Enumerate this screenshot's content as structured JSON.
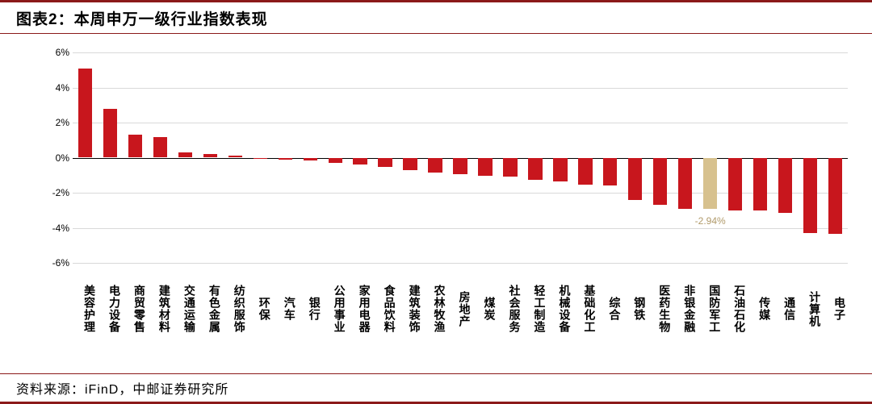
{
  "title": "图表2：本周申万一级行业指数表现",
  "source": "资料来源：iFinD，中邮证券研究所",
  "chart": {
    "type": "bar",
    "ylim": [
      -6,
      6
    ],
    "yticks": [
      -6,
      -4,
      -2,
      0,
      2,
      4,
      6
    ],
    "ytick_suffix": "%",
    "axis_color": "#000000",
    "grid_color": "#d9d9d9",
    "background_color": "#ffffff",
    "label_fontsize": 12,
    "title_fontsize": 19,
    "bar_width": 0.56,
    "default_bar_color": "#c8161d",
    "highlight_bar_color": "#d7c18e",
    "callout_color": "#b09a6a",
    "callout": {
      "index": 25,
      "text": "-2.94%"
    },
    "categories": [
      "美容护理",
      "电力设备",
      "商贸零售",
      "建筑材料",
      "交通运输",
      "有色金属",
      "纺织服饰",
      "环保",
      "汽车",
      "银行",
      "公用事业",
      "家用电器",
      "食品饮料",
      "建筑装饰",
      "农林牧渔",
      "房地产",
      "煤炭",
      "社会服务",
      "轻工制造",
      "机械设备",
      "基础化工",
      "综合",
      "钢铁",
      "医药生物",
      "非银金融",
      "国防军工",
      "石油石化",
      "传媒",
      "通信",
      "计算机",
      "电子"
    ],
    "values": [
      5.1,
      2.8,
      1.3,
      1.15,
      0.3,
      0.2,
      0.1,
      -0.05,
      -0.1,
      -0.15,
      -0.3,
      -0.4,
      -0.55,
      -0.7,
      -0.85,
      -0.95,
      -1.05,
      -1.1,
      -1.25,
      -1.35,
      -1.55,
      -1.6,
      -2.4,
      -2.7,
      -2.9,
      -2.94,
      -3.0,
      -3.0,
      -3.15,
      -4.3,
      -4.35
    ],
    "bar_colors": [
      "#c8161d",
      "#c8161d",
      "#c8161d",
      "#c8161d",
      "#c8161d",
      "#c8161d",
      "#c8161d",
      "#c8161d",
      "#c8161d",
      "#c8161d",
      "#c8161d",
      "#c8161d",
      "#c8161d",
      "#c8161d",
      "#c8161d",
      "#c8161d",
      "#c8161d",
      "#c8161d",
      "#c8161d",
      "#c8161d",
      "#c8161d",
      "#c8161d",
      "#c8161d",
      "#c8161d",
      "#c8161d",
      "#d7c18e",
      "#c8161d",
      "#c8161d",
      "#c8161d",
      "#c8161d",
      "#c8161d"
    ]
  },
  "border_color": "#8b1a1a"
}
